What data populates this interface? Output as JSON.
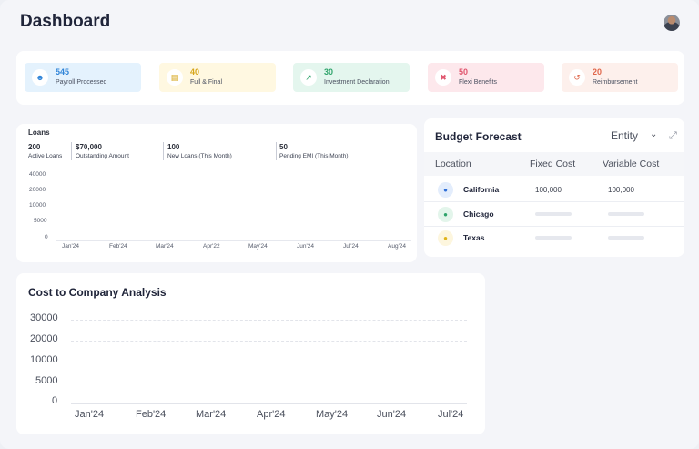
{
  "page": {
    "title": "Dashboard"
  },
  "stats": [
    {
      "value": "545",
      "label": "Payroll Processed",
      "icon": "user-group-icon",
      "bg": "#e4f2fd",
      "color": "#2f84d8"
    },
    {
      "value": "40",
      "label": "Full & Final",
      "icon": "cash-icon",
      "bg": "#fff8e1",
      "color": "#d6a51a"
    },
    {
      "value": "30",
      "label": "Investment Declaration",
      "icon": "chart-up-icon",
      "bg": "#e4f6ee",
      "color": "#2ea36a"
    },
    {
      "value": "50",
      "label": "Flexi Benefits",
      "icon": "tools-icon",
      "bg": "#fde8ec",
      "color": "#e0566e"
    },
    {
      "value": "20",
      "label": "Reimbursement",
      "icon": "refresh-icon",
      "bg": "#fdf0ec",
      "color": "#e0664a"
    }
  ],
  "loans": {
    "title": "Loans",
    "stats": [
      {
        "value": "200",
        "label": "Active Loans"
      },
      {
        "value": "$70,000",
        "label": "Outstanding Amount"
      },
      {
        "value": "100",
        "label": "New Loans (This Month)"
      },
      {
        "value": "50",
        "label": "Pending EMI (This Month)"
      }
    ],
    "y_ticks": [
      "40000",
      "20000",
      "10000",
      "5000",
      "0"
    ],
    "x_ticks": [
      "Jan'24",
      "Feb'24",
      "Mar'24",
      "Apr'22",
      "May'24",
      "Jun'24",
      "Jul'24",
      "Aug'24"
    ]
  },
  "budget": {
    "title": "Budget  Forecast",
    "entity_label": "Entity",
    "columns": [
      "Location",
      "Fixed Cost",
      "Variable Cost"
    ],
    "rows": [
      {
        "city": "California",
        "fixed": "100,000",
        "variable": "100,000",
        "pin_color": "#2f6fd8",
        "pin_bg": "#e3edfc"
      },
      {
        "city": "Chicago",
        "fixed": "",
        "variable": "",
        "pin_color": "#2ea36a",
        "pin_bg": "#e3f5eb"
      },
      {
        "city": "Texas",
        "fixed": "",
        "variable": "",
        "pin_color": "#e0b41a",
        "pin_bg": "#fdf6de"
      }
    ]
  },
  "cost": {
    "title": "Cost to Company Analysis",
    "y_ticks": [
      "30000",
      "20000",
      "10000",
      "5000",
      "0"
    ],
    "x_ticks": [
      "Jan'24",
      "Feb'24",
      "Mar'24",
      "Apr'24",
      "May'24",
      "Jun'24",
      "Jul'24"
    ]
  }
}
